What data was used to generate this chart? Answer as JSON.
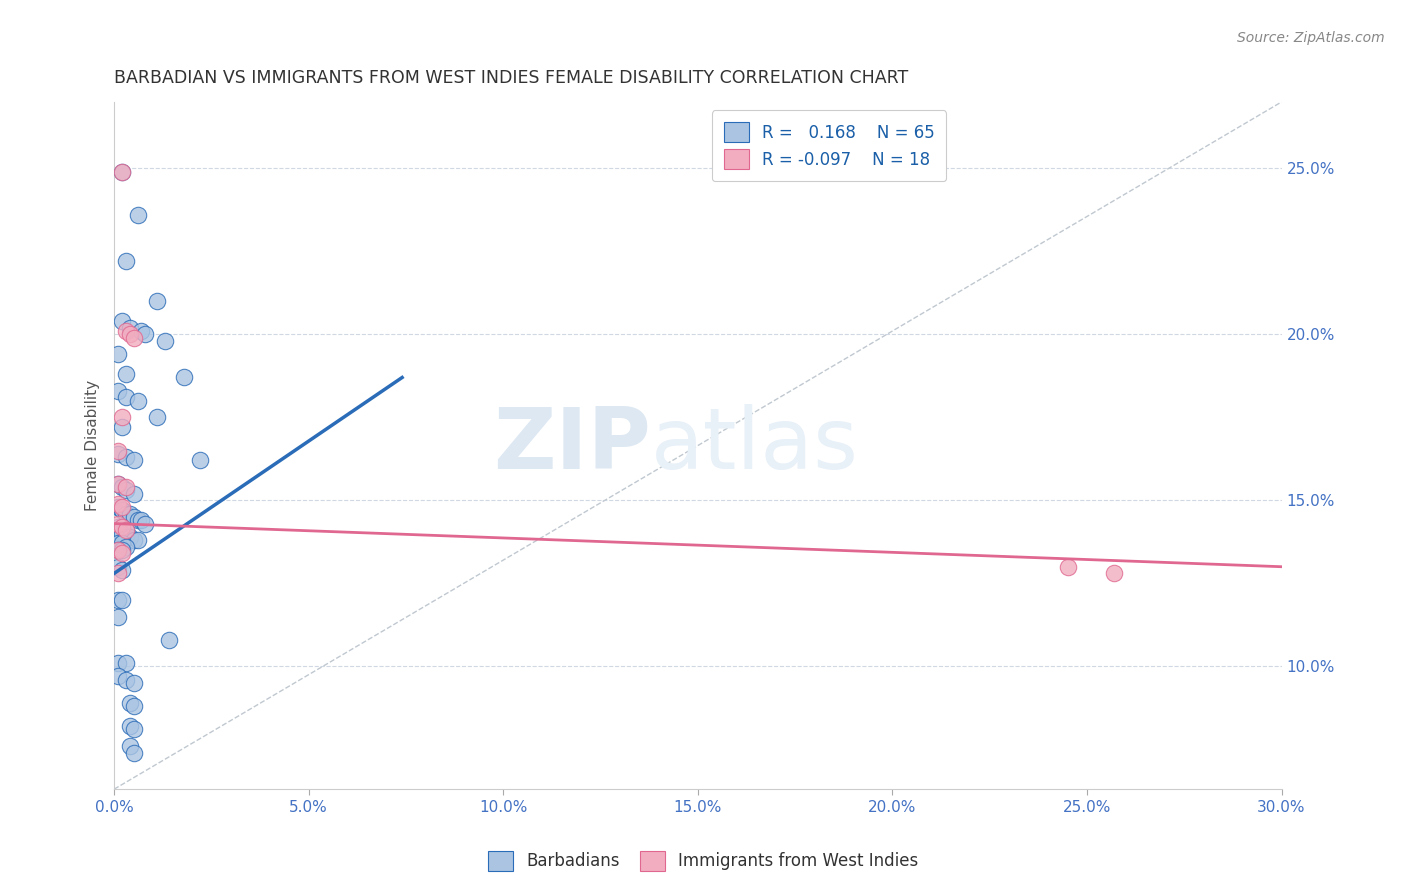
{
  "title": "BARBADIAN VS IMMIGRANTS FROM WEST INDIES FEMALE DISABILITY CORRELATION CHART",
  "source": "Source: ZipAtlas.com",
  "ylabel": "Female Disability",
  "xlim": [
    0.0,
    0.3
  ],
  "ylim": [
    0.063,
    0.27
  ],
  "xticks": [
    0.0,
    0.05,
    0.1,
    0.15,
    0.2,
    0.25,
    0.3
  ],
  "xtick_labels": [
    "0.0%",
    "5.0%",
    "10.0%",
    "15.0%",
    "20.0%",
    "25.0%",
    "30.0%"
  ],
  "yticks": [
    0.1,
    0.15,
    0.2,
    0.25
  ],
  "ytick_labels": [
    "10.0%",
    "15.0%",
    "20.0%",
    "25.0%"
  ],
  "color_blue": "#aac4e2",
  "color_pink": "#f2adc0",
  "color_blue_line": "#2b6cb8",
  "color_pink_line": "#e06890",
  "color_ref_line": "#c0c8d0",
  "background_color": "#ffffff",
  "grid_color": "#d0d8e4",
  "title_color": "#333333",
  "tick_color": "#4472c4",
  "blue_scatter": [
    [
      0.002,
      0.249
    ],
    [
      0.006,
      0.236
    ],
    [
      0.003,
      0.222
    ],
    [
      0.011,
      0.21
    ],
    [
      0.002,
      0.204
    ],
    [
      0.004,
      0.202
    ],
    [
      0.007,
      0.201
    ],
    [
      0.008,
      0.2
    ],
    [
      0.013,
      0.198
    ],
    [
      0.001,
      0.194
    ],
    [
      0.003,
      0.188
    ],
    [
      0.018,
      0.187
    ],
    [
      0.001,
      0.183
    ],
    [
      0.003,
      0.181
    ],
    [
      0.006,
      0.18
    ],
    [
      0.011,
      0.175
    ],
    [
      0.002,
      0.172
    ],
    [
      0.001,
      0.164
    ],
    [
      0.003,
      0.163
    ],
    [
      0.005,
      0.162
    ],
    [
      0.022,
      0.162
    ],
    [
      0.001,
      0.155
    ],
    [
      0.002,
      0.154
    ],
    [
      0.003,
      0.153
    ],
    [
      0.005,
      0.152
    ],
    [
      0.001,
      0.148
    ],
    [
      0.002,
      0.147
    ],
    [
      0.002,
      0.147
    ],
    [
      0.003,
      0.146
    ],
    [
      0.004,
      0.146
    ],
    [
      0.005,
      0.145
    ],
    [
      0.006,
      0.144
    ],
    [
      0.007,
      0.144
    ],
    [
      0.008,
      0.143
    ],
    [
      0.001,
      0.142
    ],
    [
      0.002,
      0.142
    ],
    [
      0.003,
      0.141
    ],
    [
      0.001,
      0.14
    ],
    [
      0.002,
      0.14
    ],
    [
      0.003,
      0.139
    ],
    [
      0.004,
      0.139
    ],
    [
      0.005,
      0.138
    ],
    [
      0.006,
      0.138
    ],
    [
      0.001,
      0.137
    ],
    [
      0.002,
      0.137
    ],
    [
      0.003,
      0.136
    ],
    [
      0.001,
      0.135
    ],
    [
      0.002,
      0.135
    ],
    [
      0.001,
      0.13
    ],
    [
      0.002,
      0.129
    ],
    [
      0.001,
      0.12
    ],
    [
      0.002,
      0.12
    ],
    [
      0.001,
      0.115
    ],
    [
      0.014,
      0.108
    ],
    [
      0.001,
      0.101
    ],
    [
      0.003,
      0.101
    ],
    [
      0.001,
      0.097
    ],
    [
      0.003,
      0.096
    ],
    [
      0.005,
      0.095
    ],
    [
      0.004,
      0.089
    ],
    [
      0.005,
      0.088
    ],
    [
      0.004,
      0.082
    ],
    [
      0.005,
      0.081
    ],
    [
      0.004,
      0.076
    ],
    [
      0.005,
      0.074
    ]
  ],
  "pink_scatter": [
    [
      0.002,
      0.249
    ],
    [
      0.003,
      0.201
    ],
    [
      0.004,
      0.2
    ],
    [
      0.005,
      0.199
    ],
    [
      0.002,
      0.175
    ],
    [
      0.001,
      0.165
    ],
    [
      0.001,
      0.155
    ],
    [
      0.003,
      0.154
    ],
    [
      0.001,
      0.149
    ],
    [
      0.002,
      0.148
    ],
    [
      0.001,
      0.143
    ],
    [
      0.002,
      0.142
    ],
    [
      0.003,
      0.141
    ],
    [
      0.001,
      0.135
    ],
    [
      0.002,
      0.134
    ],
    [
      0.001,
      0.128
    ],
    [
      0.245,
      0.13
    ],
    [
      0.257,
      0.128
    ]
  ],
  "blue_line_x": [
    0.0,
    0.074
  ],
  "blue_line_y": [
    0.128,
    0.187
  ],
  "pink_line_x": [
    0.0,
    0.3
  ],
  "pink_line_y": [
    0.143,
    0.13
  ],
  "ref_line_x": [
    0.0,
    0.3
  ],
  "ref_line_y": [
    0.063,
    0.27
  ],
  "watermark_zip": "ZIP",
  "watermark_atlas": "atlas",
  "legend_labels": [
    "R =   0.168    N = 65",
    "R = -0.097    N = 18"
  ],
  "bottom_legend_labels": [
    "Barbadians",
    "Immigrants from West Indies"
  ]
}
